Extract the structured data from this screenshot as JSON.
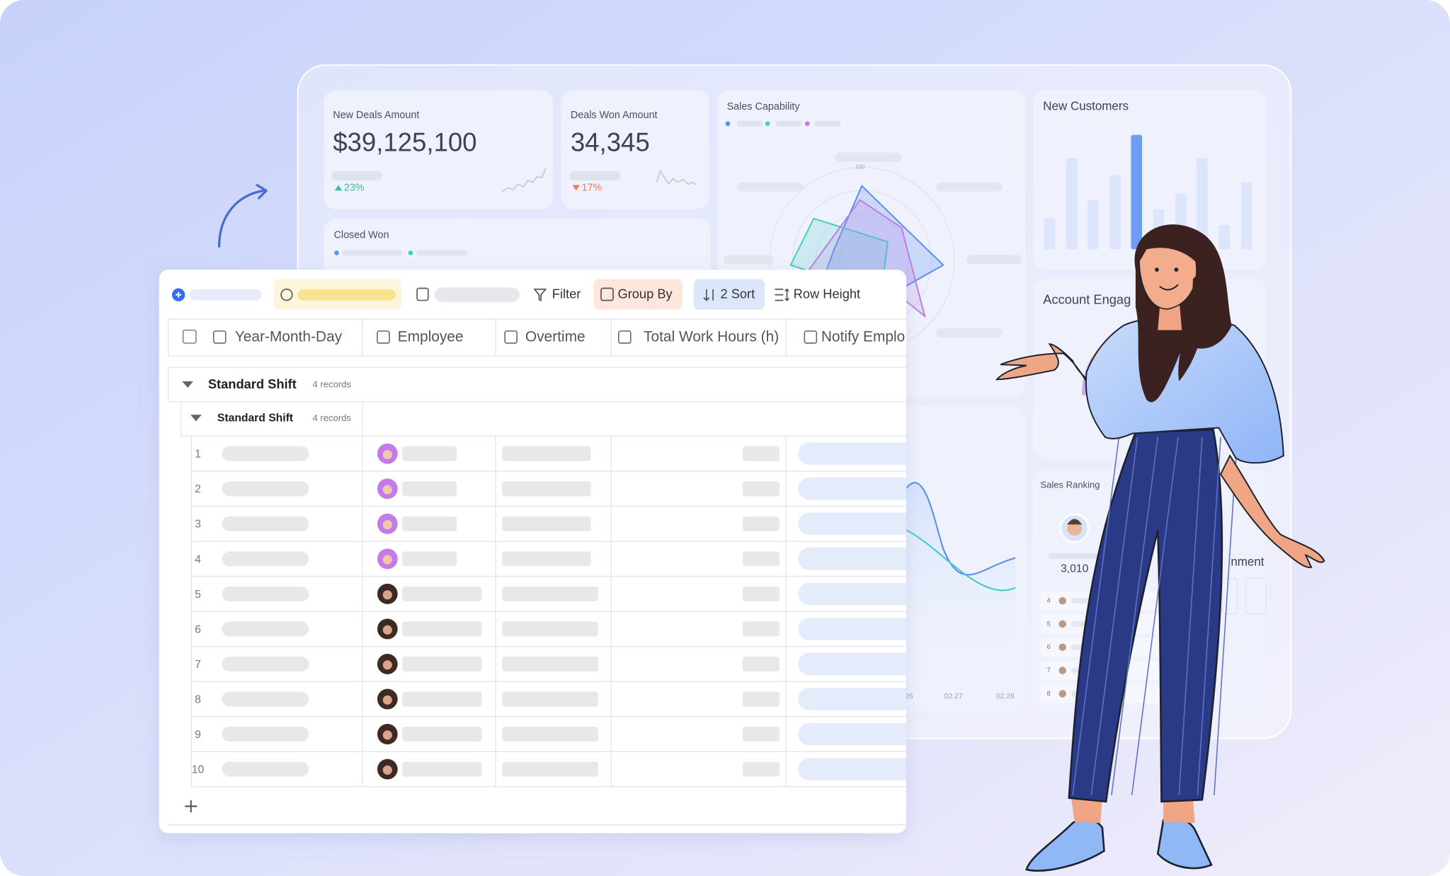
{
  "dashboard": {
    "new_deals": {
      "label": "New Deals Amount",
      "value": "$39,125,100",
      "change": "23%"
    },
    "deals_won": {
      "label": "Deals Won Amount",
      "value": "34,345",
      "change": "17%"
    },
    "sales_capability": {
      "title": "Sales Capability",
      "axis_max": "100"
    },
    "new_customers": {
      "title": "New Customers"
    },
    "closed_won": {
      "title": "Closed Won"
    },
    "account_engagement": {
      "title": "Account Engag"
    },
    "sales_ranking": {
      "title": "Sales Ranking",
      "top_score": "3,010",
      "ranks": [
        "4",
        "5",
        "6",
        "7",
        "8"
      ],
      "partial_label": "nment"
    },
    "trend_chart": {
      "x_labels": [
        "26",
        "02.27",
        "02.28"
      ]
    }
  },
  "table": {
    "toolbar": [
      "Filter",
      "Group By",
      "2 Sort",
      "Row Height"
    ],
    "columns": [
      "Year-Month-Day",
      "Employee",
      "Overtime",
      "Total Work Hours (h)",
      "Notify Emplo"
    ],
    "group": {
      "name": "Standard Shift",
      "count": "4 records"
    },
    "subgroup": {
      "name": "Standard Shift",
      "count": "4 records"
    },
    "row_numbers": [
      "1",
      "2",
      "3",
      "4",
      "5",
      "6",
      "7",
      "8",
      "9",
      "10"
    ]
  }
}
